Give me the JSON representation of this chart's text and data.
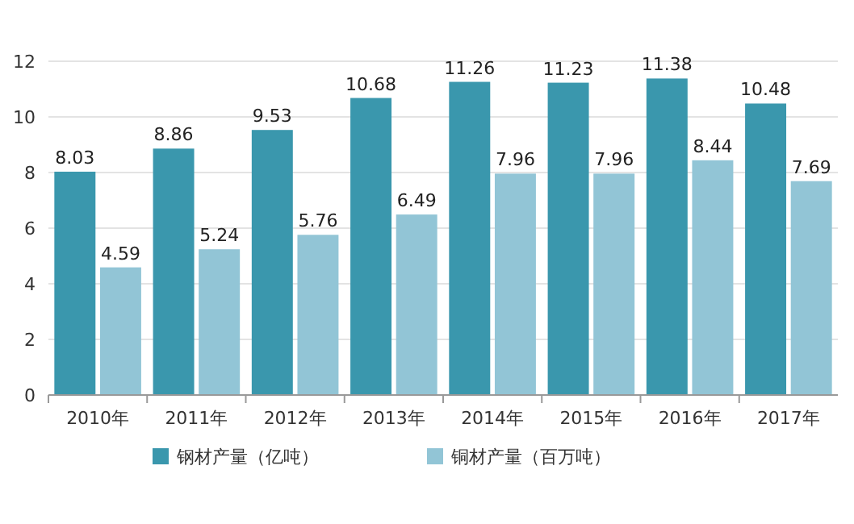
{
  "chart_data": {
    "type": "bar",
    "categories": [
      "2010年",
      "2011年",
      "2012年",
      "2013年",
      "2014年",
      "2015年",
      "2016年",
      "2017年"
    ],
    "series": [
      {
        "name": "钢材产量（亿吨）",
        "color": "#3a97ad",
        "values": [
          8.03,
          8.86,
          9.53,
          10.68,
          11.26,
          11.23,
          11.38,
          10.48
        ]
      },
      {
        "name": "铜材产量（百万吨）",
        "color": "#92c5d6",
        "values": [
          4.59,
          5.24,
          5.76,
          6.49,
          7.96,
          7.96,
          8.44,
          7.69
        ]
      }
    ],
    "ylim": [
      0,
      12
    ],
    "yticks": [
      0,
      2,
      4,
      6,
      8,
      10,
      12
    ],
    "grid": "y",
    "legend": "bottom",
    "data_labels": true
  }
}
